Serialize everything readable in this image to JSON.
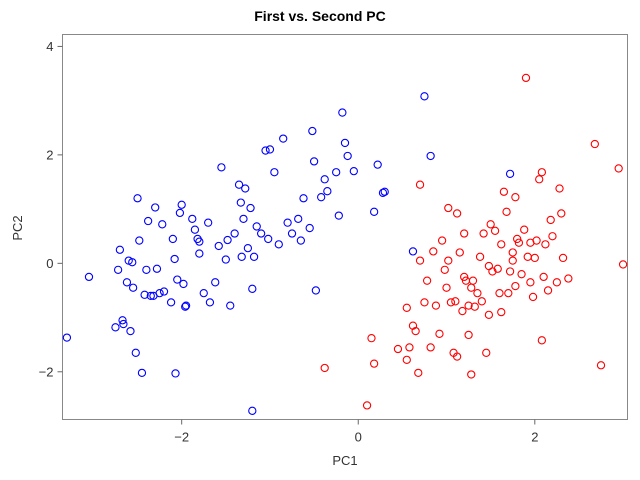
{
  "chart_data": {
    "type": "scatter",
    "title": "First vs. Second PC",
    "xlabel": "PC1",
    "ylabel": "PC2",
    "xlim": [
      -3.35,
      3.05
    ],
    "ylim": [
      -2.88,
      4.22
    ],
    "xticks": [
      -2,
      0,
      2
    ],
    "yticks": [
      -2,
      0,
      2,
      4
    ],
    "grid": false,
    "series": [
      {
        "color": "#0000ff",
        "marker": "open-circle",
        "points": [
          [
            -3.3,
            -1.37
          ],
          [
            -3.05,
            -0.25
          ],
          [
            -2.75,
            -1.18
          ],
          [
            -2.72,
            -0.12
          ],
          [
            -2.7,
            0.25
          ],
          [
            -2.67,
            -1.05
          ],
          [
            -2.66,
            -1.12
          ],
          [
            -2.62,
            -0.35
          ],
          [
            -2.6,
            0.05
          ],
          [
            -2.58,
            -1.25
          ],
          [
            -2.56,
            0.02
          ],
          [
            -2.55,
            -0.45
          ],
          [
            -2.52,
            -1.65
          ],
          [
            -2.5,
            1.2
          ],
          [
            -2.48,
            0.42
          ],
          [
            -2.45,
            -2.02
          ],
          [
            -2.42,
            -0.58
          ],
          [
            -2.4,
            -0.12
          ],
          [
            -2.38,
            0.78
          ],
          [
            -2.35,
            -0.6
          ],
          [
            -2.32,
            -0.6
          ],
          [
            -2.3,
            1.03
          ],
          [
            -2.28,
            -0.1
          ],
          [
            -2.25,
            -0.55
          ],
          [
            -2.22,
            0.72
          ],
          [
            -2.2,
            -0.52
          ],
          [
            -2.12,
            -0.72
          ],
          [
            -2.1,
            0.45
          ],
          [
            -2.08,
            0.08
          ],
          [
            -2.07,
            -2.03
          ],
          [
            -2.05,
            -0.3
          ],
          [
            -2.02,
            0.93
          ],
          [
            -2.0,
            1.08
          ],
          [
            -1.98,
            -0.38
          ],
          [
            -1.96,
            -0.8
          ],
          [
            -1.95,
            -0.78
          ],
          [
            -1.88,
            0.82
          ],
          [
            -1.85,
            0.62
          ],
          [
            -1.82,
            0.45
          ],
          [
            -1.8,
            0.18
          ],
          [
            -1.8,
            0.4
          ],
          [
            -1.75,
            -0.55
          ],
          [
            -1.7,
            0.75
          ],
          [
            -1.68,
            -0.72
          ],
          [
            -1.62,
            -0.35
          ],
          [
            -1.58,
            0.32
          ],
          [
            -1.55,
            1.77
          ],
          [
            -1.5,
            0.07
          ],
          [
            -1.48,
            0.43
          ],
          [
            -1.45,
            -0.78
          ],
          [
            -1.4,
            0.55
          ],
          [
            -1.35,
            1.45
          ],
          [
            -1.33,
            1.12
          ],
          [
            -1.32,
            0.12
          ],
          [
            -1.3,
            0.82
          ],
          [
            -1.28,
            1.38
          ],
          [
            -1.25,
            0.28
          ],
          [
            -1.22,
            1.02
          ],
          [
            -1.2,
            -0.47
          ],
          [
            -1.18,
            0.12
          ],
          [
            -1.15,
            0.68
          ],
          [
            -1.1,
            0.55
          ],
          [
            -1.05,
            2.08
          ],
          [
            -1.02,
            0.45
          ],
          [
            -1.0,
            2.1
          ],
          [
            -0.95,
            1.68
          ],
          [
            -0.9,
            0.35
          ],
          [
            -0.85,
            2.3
          ],
          [
            -0.8,
            0.75
          ],
          [
            -0.75,
            0.55
          ],
          [
            -0.68,
            0.82
          ],
          [
            -0.65,
            0.42
          ],
          [
            -0.62,
            1.2
          ],
          [
            -0.55,
            0.65
          ],
          [
            -0.52,
            2.44
          ],
          [
            -0.5,
            1.88
          ],
          [
            -0.48,
            -0.5
          ],
          [
            -0.42,
            1.22
          ],
          [
            -0.38,
            1.55
          ],
          [
            -0.35,
            1.33
          ],
          [
            -0.25,
            1.68
          ],
          [
            -0.18,
            2.78
          ],
          [
            -0.15,
            2.22
          ],
          [
            -0.12,
            1.98
          ],
          [
            -0.05,
            1.7
          ],
          [
            0.18,
            0.95
          ],
          [
            0.22,
            1.82
          ],
          [
            0.28,
            1.3
          ],
          [
            0.3,
            1.32
          ],
          [
            0.62,
            0.22
          ],
          [
            0.75,
            3.08
          ],
          [
            0.82,
            1.98
          ],
          [
            -1.2,
            -2.72
          ],
          [
            1.72,
            1.65
          ],
          [
            -0.22,
            0.88
          ]
        ]
      },
      {
        "color": "#ff0000",
        "marker": "open-circle",
        "points": [
          [
            -0.38,
            -1.93
          ],
          [
            0.1,
            -2.62
          ],
          [
            0.18,
            -1.85
          ],
          [
            0.15,
            -1.38
          ],
          [
            0.45,
            -1.58
          ],
          [
            0.55,
            -1.78
          ],
          [
            0.58,
            -1.55
          ],
          [
            0.62,
            -1.15
          ],
          [
            0.65,
            -1.25
          ],
          [
            0.68,
            -2.02
          ],
          [
            0.7,
            0.05
          ],
          [
            0.75,
            -0.72
          ],
          [
            0.78,
            -0.32
          ],
          [
            0.82,
            -1.55
          ],
          [
            0.88,
            -0.78
          ],
          [
            0.92,
            -1.3
          ],
          [
            0.95,
            0.42
          ],
          [
            0.98,
            -0.12
          ],
          [
            1.0,
            -0.45
          ],
          [
            1.02,
            0.05
          ],
          [
            1.05,
            -0.72
          ],
          [
            1.08,
            -1.65
          ],
          [
            1.1,
            -0.7
          ],
          [
            1.12,
            -1.72
          ],
          [
            1.15,
            0.2
          ],
          [
            1.18,
            -0.88
          ],
          [
            1.2,
            0.55
          ],
          [
            1.2,
            -0.25
          ],
          [
            1.22,
            -0.32
          ],
          [
            1.25,
            -1.32
          ],
          [
            1.25,
            -0.78
          ],
          [
            1.28,
            -2.05
          ],
          [
            1.28,
            -0.45
          ],
          [
            1.3,
            -0.32
          ],
          [
            1.32,
            -0.8
          ],
          [
            1.35,
            -0.55
          ],
          [
            1.38,
            0.12
          ],
          [
            1.4,
            -0.7
          ],
          [
            1.42,
            0.55
          ],
          [
            1.45,
            -1.65
          ],
          [
            1.48,
            -0.05
          ],
          [
            1.5,
            0.72
          ],
          [
            1.52,
            -0.15
          ],
          [
            1.55,
            0.6
          ],
          [
            1.58,
            -0.1
          ],
          [
            1.6,
            -0.55
          ],
          [
            1.62,
            -0.9
          ],
          [
            1.62,
            0.35
          ],
          [
            1.65,
            1.32
          ],
          [
            1.68,
            0.95
          ],
          [
            1.7,
            -0.55
          ],
          [
            1.72,
            -0.15
          ],
          [
            1.75,
            0.2
          ],
          [
            1.78,
            1.22
          ],
          [
            1.78,
            -0.42
          ],
          [
            1.8,
            0.45
          ],
          [
            1.82,
            0.38
          ],
          [
            1.85,
            -0.2
          ],
          [
            1.88,
            0.62
          ],
          [
            1.9,
            3.42
          ],
          [
            1.92,
            0.12
          ],
          [
            1.95,
            -0.35
          ],
          [
            1.95,
            0.38
          ],
          [
            1.98,
            -0.62
          ],
          [
            2.0,
            0.1
          ],
          [
            2.02,
            0.42
          ],
          [
            2.05,
            1.55
          ],
          [
            2.08,
            1.68
          ],
          [
            2.1,
            -0.25
          ],
          [
            2.12,
            0.35
          ],
          [
            2.15,
            -0.5
          ],
          [
            2.18,
            0.8
          ],
          [
            2.2,
            0.5
          ],
          [
            2.25,
            -0.35
          ],
          [
            2.28,
            1.38
          ],
          [
            2.3,
            0.92
          ],
          [
            2.32,
            0.1
          ],
          [
            2.38,
            -0.28
          ],
          [
            2.68,
            2.2
          ],
          [
            2.75,
            -1.88
          ],
          [
            2.95,
            1.75
          ],
          [
            3.0,
            -0.02
          ],
          [
            1.12,
            0.92
          ],
          [
            1.02,
            1.02
          ],
          [
            0.7,
            1.45
          ],
          [
            0.85,
            0.22
          ],
          [
            2.08,
            -1.42
          ],
          [
            1.75,
            0.05
          ],
          [
            1.48,
            -0.95
          ],
          [
            0.55,
            -0.82
          ]
        ]
      }
    ]
  }
}
